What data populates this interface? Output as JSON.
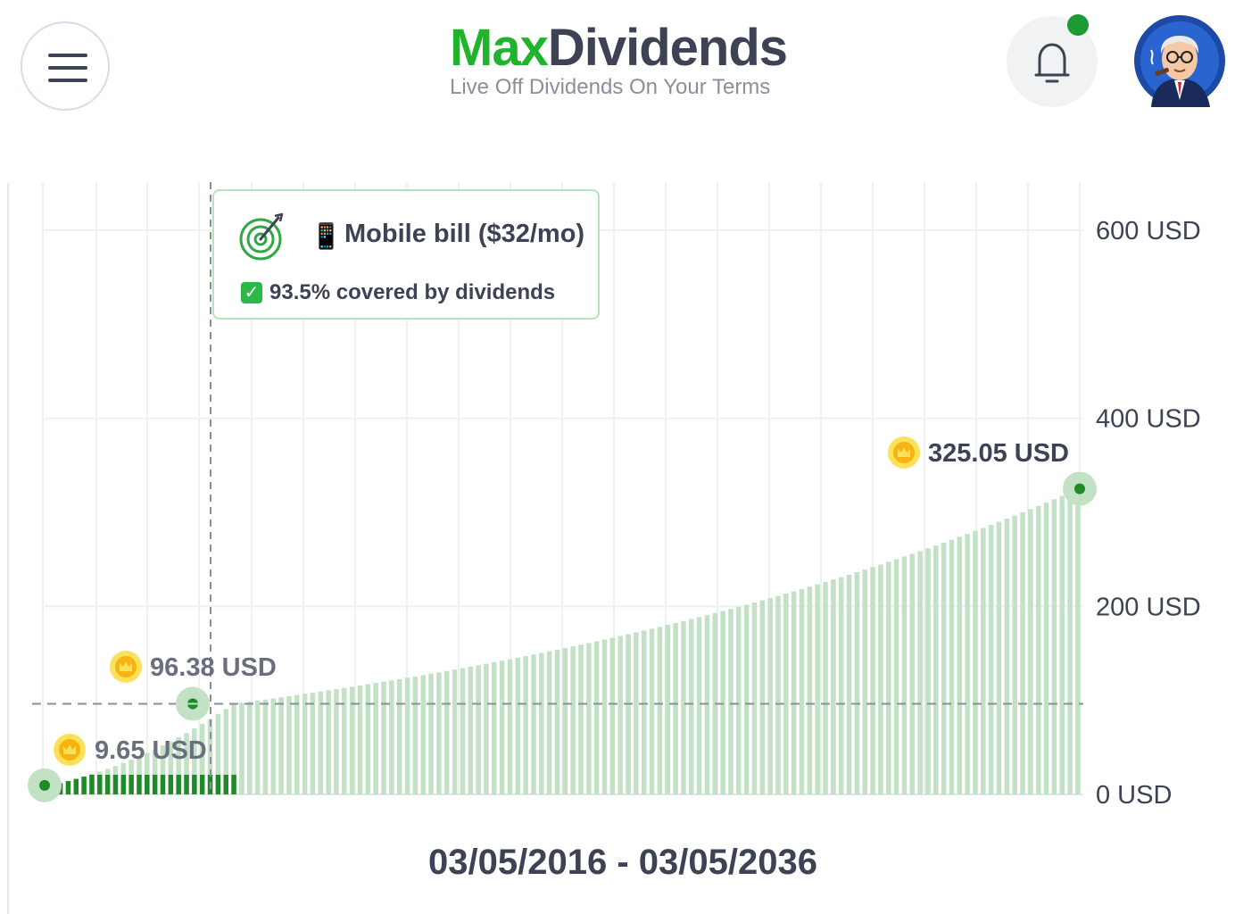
{
  "app": {
    "brand_part1": "Max",
    "brand_part2": "Dividends",
    "tagline": "Live Off Dividends On Your Terms"
  },
  "icons": {
    "menu": "hamburger-menu-icon",
    "notifications": "bell-icon",
    "avatar": "user-avatar",
    "goal": "target-icon",
    "coin": "coin-icon",
    "phone": "mobile-phone-emoji",
    "check": "check-mark-button-emoji"
  },
  "colors": {
    "brand_green": "#22b32c",
    "dark_text": "#3d4255",
    "bar_past": "#1e8a28",
    "bar_future": "#c2e1c5",
    "notification_dot": "#1c9b35"
  },
  "goal_tooltip": {
    "phone_glyph": "📱",
    "title": "Mobile bill ($32/mo)",
    "check_glyph": "✓",
    "coverage": "93.5% covered by dividends"
  },
  "chart_data": {
    "type": "bar",
    "title": "",
    "date_range": "03/05/2016 - 03/05/2036",
    "y_ticks": [
      "600 USD",
      "400 USD",
      "200 USD",
      "0 USD"
    ],
    "ylim": [
      0,
      600
    ],
    "grid": true,
    "annotations": [
      {
        "label": "9.65 USD",
        "value": 9.65
      },
      {
        "label": "96.38 USD",
        "value": 96.38
      },
      {
        "label": "325.05 USD",
        "value": 325.05
      }
    ],
    "goal_line": 96.38,
    "series": [
      {
        "values": [
          9.65,
          11.8,
          14.2,
          16.5,
          18.9,
          21.7,
          24.3,
          27.1,
          30.2,
          33.4,
          36.8,
          40.5,
          44.1,
          47.9,
          52.0,
          56.3,
          60.8,
          65.2,
          70.1,
          75.0,
          80.2,
          85.6,
          90.8,
          96.38
        ]
      },
      {
        "values": [
          97.5,
          98.6,
          99.8,
          100.9,
          102.1,
          103.3,
          104.5,
          105.7,
          106.9,
          108.1,
          109.4,
          110.7,
          111.9,
          113.2,
          114.5,
          115.8,
          117.2,
          118.5,
          119.9,
          121.3,
          122.6,
          124.1,
          125.5,
          126.9,
          128.4,
          129.8,
          131.3,
          132.8,
          134.3,
          135.9,
          137.4,
          139.0,
          140.6,
          142.2,
          143.8,
          145.4,
          147.1,
          148.8,
          150.5,
          152.2,
          153.9,
          155.7,
          157.4,
          159.2,
          161.0,
          162.9,
          164.7,
          166.6,
          168.5,
          170.4,
          172.3,
          174.3,
          176.2,
          178.2,
          180.3,
          182.3,
          184.4,
          186.5,
          188.6,
          190.7,
          192.9,
          195.1,
          197.3,
          199.5,
          201.8,
          204.1,
          206.4,
          208.7,
          211.1,
          213.5,
          215.9,
          218.4,
          220.9,
          223.4,
          225.9,
          228.5,
          231.1,
          233.7,
          236.4,
          239.1,
          241.8,
          244.5,
          247.3,
          250.1,
          253.0,
          255.9,
          258.8,
          261.7,
          264.7,
          267.7,
          270.8,
          273.9,
          277.0,
          280.2,
          283.4,
          286.6,
          289.9,
          293.2,
          296.6,
          300.0,
          303.4,
          306.9,
          310.4,
          313.9,
          317.5,
          321.2,
          325.05
        ]
      }
    ]
  }
}
